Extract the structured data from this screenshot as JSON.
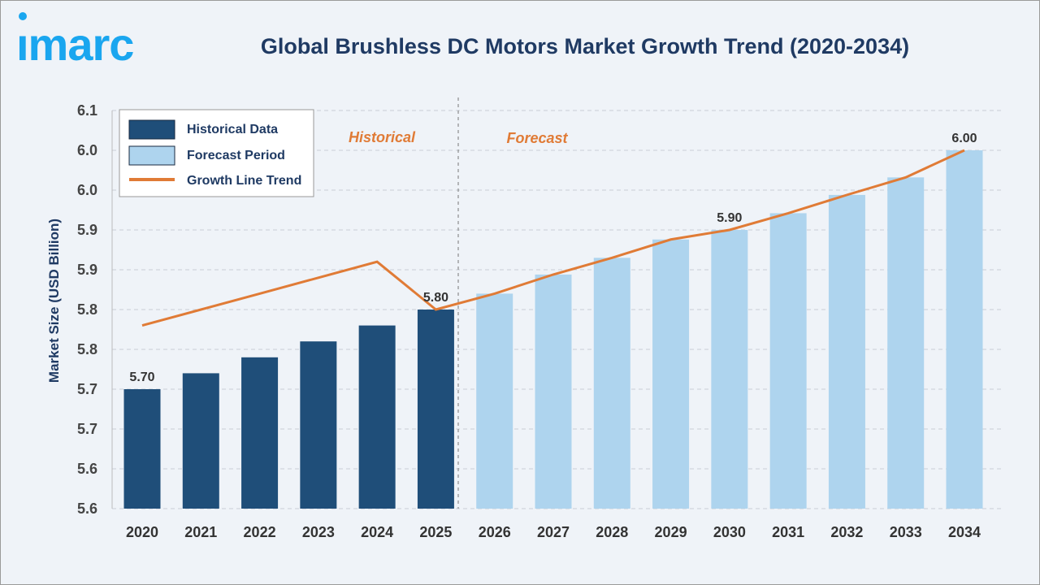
{
  "logo_text": "imarc",
  "colors": {
    "historical": "#1f4e79",
    "forecast": "#aed4ee",
    "trend": "#e07b36",
    "logo": "#1aa6ef",
    "title": "#1f3a63"
  },
  "chart_data": {
    "type": "bar",
    "title": "Global Brushless DC Motors Market Growth Trend (2020-2034)",
    "ylabel": "Market Size (USD Billion)",
    "xlabel": "",
    "ylim": [
      5.55,
      6.05
    ],
    "yticks": [
      5.55,
      5.6,
      5.65,
      5.7,
      5.75,
      5.8,
      5.85,
      5.9,
      5.95,
      6.0,
      6.05
    ],
    "ytick_labels": [
      "5.6",
      "5.6",
      "5.7",
      "5.7",
      "5.8",
      "5.8",
      "5.9",
      "5.9",
      "6.0",
      "6.0",
      "6.1"
    ],
    "grid": true,
    "legend_position": "top-left",
    "categories": [
      "2020",
      "2021",
      "2022",
      "2023",
      "2024",
      "2025",
      "2026",
      "2027",
      "2028",
      "2029",
      "2030",
      "2031",
      "2032",
      "2033",
      "2034"
    ],
    "series": [
      {
        "name": "Historical Data",
        "type": "bar",
        "values": [
          5.7,
          5.72,
          5.74,
          5.76,
          5.78,
          5.8,
          null,
          null,
          null,
          null,
          null,
          null,
          null,
          null,
          null
        ]
      },
      {
        "name": "Forecast Period",
        "type": "bar",
        "values": [
          null,
          null,
          null,
          null,
          null,
          null,
          5.82,
          5.844,
          5.865,
          5.888,
          5.9,
          5.921,
          5.944,
          5.966,
          6.0
        ]
      },
      {
        "name": "Growth Line Trend",
        "type": "line",
        "values": [
          5.78,
          5.8,
          5.82,
          5.84,
          5.86,
          5.8,
          5.82,
          5.844,
          5.865,
          5.888,
          5.9,
          5.921,
          5.944,
          5.966,
          6.0
        ]
      }
    ],
    "data_labels": [
      {
        "category": "2020",
        "text": "5.70"
      },
      {
        "category": "2025",
        "text": "5.80"
      },
      {
        "category": "2030",
        "text": "5.90"
      },
      {
        "category": "2034",
        "text": "6.00"
      }
    ],
    "annotations": {
      "historical": "Historical",
      "forecast": "Forecast"
    }
  }
}
